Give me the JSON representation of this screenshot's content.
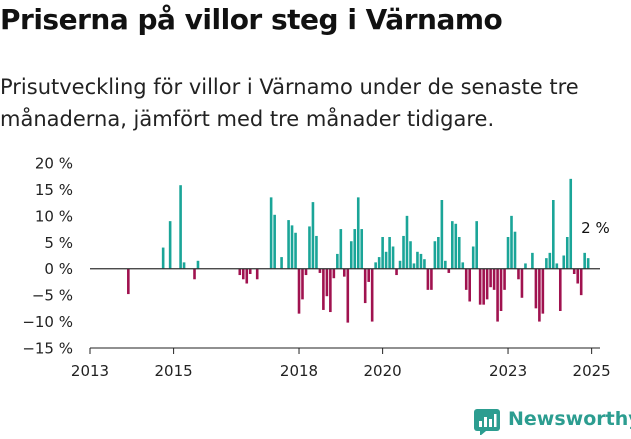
{
  "header": {
    "title": "Priserna på villor steg i Värnamo",
    "subtitle": "Prisutveckling för villor i Värnamo under de senaste tre månaderna, jämfört med tre månader tidigare."
  },
  "brand": {
    "name": "Newsworthy",
    "icon": "newsworthy-logo-icon",
    "color": "#2c9d90"
  },
  "colors": {
    "positive": "#1aa598",
    "negative": "#a0124f",
    "axis": "#222222",
    "zero_line": "#333333"
  },
  "chart_data": {
    "type": "bar",
    "title": "",
    "xlabel": "",
    "ylabel": "",
    "x_unit": "year",
    "ylim": [
      -15,
      20
    ],
    "xlim": [
      2013,
      2025.2
    ],
    "yticks": [
      -15,
      -10,
      -5,
      0,
      5,
      10,
      15,
      20
    ],
    "ytick_labels": [
      "−15 %",
      "−10 %",
      "−5 %",
      "0 %",
      "5 %",
      "10 %",
      "15 %",
      "20 %"
    ],
    "xticks": [
      2013,
      2015,
      2018,
      2020,
      2023,
      2025
    ],
    "xtick_labels": [
      "2013",
      "2015",
      "2018",
      "2020",
      "2023",
      "2025"
    ],
    "grid": false,
    "legend": "none",
    "annotations": [
      {
        "x": 2024.917,
        "y": 2,
        "text": "2 %"
      }
    ],
    "series": [
      {
        "values": [
          [
            2013.917,
            -4.8
          ],
          [
            2014.75,
            4
          ],
          [
            2014.917,
            9
          ],
          [
            2015.167,
            15.8
          ],
          [
            2015.25,
            1.2
          ],
          [
            2015.5,
            -2
          ],
          [
            2015.583,
            1.5
          ],
          [
            2016.583,
            -1.2
          ],
          [
            2016.667,
            -2
          ],
          [
            2016.75,
            -2.8
          ],
          [
            2016.833,
            -1
          ],
          [
            2017,
            -2
          ],
          [
            2017.333,
            13.5
          ],
          [
            2017.417,
            10.2
          ],
          [
            2017.583,
            2.2
          ],
          [
            2017.75,
            9.2
          ],
          [
            2017.833,
            8.2
          ],
          [
            2017.917,
            6.8
          ],
          [
            2018,
            -8.5
          ],
          [
            2018.083,
            -5.8
          ],
          [
            2018.167,
            -1.2
          ],
          [
            2018.25,
            8
          ],
          [
            2018.333,
            12.6
          ],
          [
            2018.417,
            6.2
          ],
          [
            2018.5,
            -0.8
          ],
          [
            2018.583,
            -7.8
          ],
          [
            2018.667,
            -5.2
          ],
          [
            2018.75,
            -8.2
          ],
          [
            2018.833,
            -1.8
          ],
          [
            2018.917,
            2.8
          ],
          [
            2019,
            7.5
          ],
          [
            2019.083,
            -1.5
          ],
          [
            2019.167,
            -10.2
          ],
          [
            2019.25,
            5.2
          ],
          [
            2019.333,
            7.5
          ],
          [
            2019.417,
            13.5
          ],
          [
            2019.5,
            7.5
          ],
          [
            2019.583,
            -6.5
          ],
          [
            2019.667,
            -2.5
          ],
          [
            2019.75,
            -10
          ],
          [
            2019.833,
            1.2
          ],
          [
            2019.917,
            2.2
          ],
          [
            2020,
            6
          ],
          [
            2020.083,
            3.2
          ],
          [
            2020.167,
            6
          ],
          [
            2020.25,
            4.2
          ],
          [
            2020.333,
            -1.2
          ],
          [
            2020.417,
            1.5
          ],
          [
            2020.5,
            6.2
          ],
          [
            2020.583,
            10
          ],
          [
            2020.667,
            5.2
          ],
          [
            2020.75,
            1
          ],
          [
            2020.833,
            3.2
          ],
          [
            2020.917,
            2.8
          ],
          [
            2021,
            1.8
          ],
          [
            2021.083,
            -4
          ],
          [
            2021.167,
            -4
          ],
          [
            2021.25,
            5.2
          ],
          [
            2021.333,
            6
          ],
          [
            2021.417,
            13
          ],
          [
            2021.5,
            1.5
          ],
          [
            2021.583,
            -0.8
          ],
          [
            2021.667,
            9
          ],
          [
            2021.75,
            8.5
          ],
          [
            2021.833,
            6
          ],
          [
            2021.917,
            1.2
          ],
          [
            2022,
            -4
          ],
          [
            2022.083,
            -6.2
          ],
          [
            2022.167,
            4.2
          ],
          [
            2022.25,
            9
          ],
          [
            2022.333,
            -6.8
          ],
          [
            2022.417,
            -6.8
          ],
          [
            2022.5,
            -5.8
          ],
          [
            2022.583,
            -3.5
          ],
          [
            2022.667,
            -4
          ],
          [
            2022.75,
            -10
          ],
          [
            2022.833,
            -8
          ],
          [
            2022.917,
            -4
          ],
          [
            2023,
            6
          ],
          [
            2023.083,
            10
          ],
          [
            2023.167,
            7
          ],
          [
            2023.25,
            -2
          ],
          [
            2023.333,
            -5.5
          ],
          [
            2023.417,
            1
          ],
          [
            2023.583,
            3
          ],
          [
            2023.667,
            -7.5
          ],
          [
            2023.75,
            -10
          ],
          [
            2023.833,
            -8.5
          ],
          [
            2023.917,
            2
          ],
          [
            2024,
            3
          ],
          [
            2024.083,
            13
          ],
          [
            2024.167,
            1
          ],
          [
            2024.25,
            -8
          ],
          [
            2024.333,
            2.5
          ],
          [
            2024.417,
            6
          ],
          [
            2024.5,
            17
          ],
          [
            2024.583,
            -1
          ],
          [
            2024.667,
            -2.8
          ],
          [
            2024.75,
            -5
          ],
          [
            2024.833,
            3
          ],
          [
            2024.917,
            2
          ]
        ]
      }
    ]
  }
}
